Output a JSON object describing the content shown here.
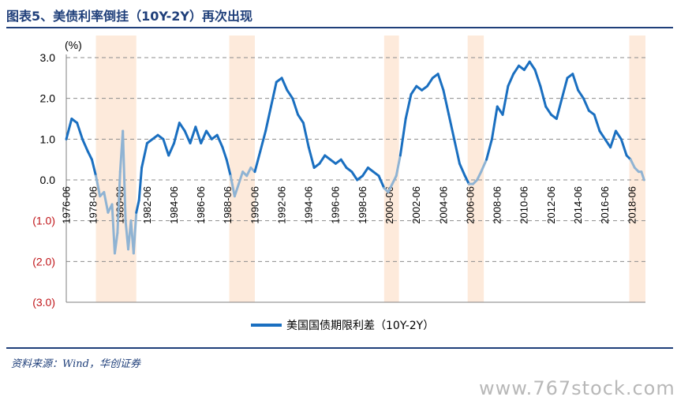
{
  "header": {
    "title": "图表5、美债利率倒挂（10Y-2Y）再次出现"
  },
  "footer": {
    "source": "资料来源：Wind，华创证券",
    "watermark": "www.767stock.com"
  },
  "colors": {
    "line": "#1a6fc0",
    "recession_line": "#8fb3d3",
    "recession_band": "#fdeadb",
    "positive_tick": "#000000",
    "negative_tick": "#c0161a"
  },
  "chart_data": {
    "type": "line",
    "ylabel": "(%)",
    "ylim": [
      -3.0,
      3.0
    ],
    "y_ticks": [
      3.0,
      2.0,
      1.0,
      0.0,
      -1.0,
      -2.0,
      -3.0
    ],
    "y_tick_labels": [
      "3.0",
      "2.0",
      "1.0",
      "0.0",
      "(1.0)",
      "(2.0)",
      "(3.0)"
    ],
    "xlim": [
      1976.4,
      2019.4
    ],
    "x_ticks": [
      1976.42,
      1978.42,
      1980.42,
      1982.42,
      1984.42,
      1986.42,
      1988.42,
      1990.42,
      1992.42,
      1994.42,
      1996.42,
      1998.42,
      2000.42,
      2002.42,
      2004.42,
      2006.42,
      2008.42,
      2010.42,
      2012.42,
      2014.42,
      2016.42,
      2018.42
    ],
    "x_tick_labels": [
      "1976-06",
      "1978-06",
      "1980-06",
      "1982-06",
      "1984-06",
      "1986-06",
      "1988-06",
      "1990-06",
      "1992-06",
      "1994-06",
      "1996-06",
      "1998-06",
      "2000-06",
      "2002-06",
      "2004-06",
      "2006-06",
      "2008-06",
      "2010-06",
      "2012-06",
      "2014-06",
      "2016-06",
      "2018-06"
    ],
    "grid": "horizontal-dashed",
    "legend_position": "bottom-center",
    "inversion_periods": [
      [
        1978.6,
        1981.6
      ],
      [
        1988.5,
        1990.4
      ],
      [
        2000.0,
        2001.1
      ],
      [
        2006.2,
        2007.4
      ],
      [
        2018.2,
        2019.4
      ]
    ],
    "series": [
      {
        "name": "美国国债期限利差（10Y-2Y）",
        "x": [
          1976.4,
          1976.8,
          1977.2,
          1977.6,
          1978.0,
          1978.3,
          1978.6,
          1978.9,
          1979.2,
          1979.5,
          1979.8,
          1980.0,
          1980.2,
          1980.4,
          1980.6,
          1980.8,
          1981.0,
          1981.2,
          1981.4,
          1981.6,
          1981.8,
          1982.0,
          1982.4,
          1982.8,
          1983.2,
          1983.6,
          1984.0,
          1984.4,
          1984.8,
          1985.2,
          1985.6,
          1986.0,
          1986.4,
          1986.8,
          1987.2,
          1987.6,
          1988.0,
          1988.3,
          1988.6,
          1988.9,
          1989.2,
          1989.5,
          1989.8,
          1990.1,
          1990.4,
          1990.8,
          1991.2,
          1991.6,
          1992.0,
          1992.4,
          1992.8,
          1993.2,
          1993.6,
          1994.0,
          1994.4,
          1994.8,
          1995.2,
          1995.6,
          1996.0,
          1996.4,
          1996.8,
          1997.2,
          1997.6,
          1998.0,
          1998.4,
          1998.8,
          1999.2,
          1999.6,
          2000.0,
          2000.3,
          2000.6,
          2000.9,
          2001.2,
          2001.6,
          2002.0,
          2002.4,
          2002.8,
          2003.2,
          2003.6,
          2004.0,
          2004.4,
          2004.8,
          2005.2,
          2005.6,
          2006.0,
          2006.3,
          2006.6,
          2006.9,
          2007.2,
          2007.6,
          2008.0,
          2008.4,
          2008.8,
          2009.2,
          2009.6,
          2010.0,
          2010.4,
          2010.8,
          2011.2,
          2011.6,
          2012.0,
          2012.4,
          2012.8,
          2013.2,
          2013.6,
          2014.0,
          2014.4,
          2014.8,
          2015.2,
          2015.6,
          2016.0,
          2016.4,
          2016.8,
          2017.2,
          2017.6,
          2018.0,
          2018.3,
          2018.6,
          2018.9,
          2019.1,
          2019.3
        ],
        "y": [
          1.0,
          1.5,
          1.4,
          1.0,
          0.7,
          0.5,
          0.1,
          -0.4,
          -0.3,
          -0.8,
          -0.6,
          -1.8,
          -1.3,
          0.2,
          1.2,
          -1.0,
          -1.7,
          -1.0,
          -1.8,
          -0.8,
          -0.5,
          0.3,
          0.9,
          1.0,
          1.1,
          1.0,
          0.6,
          0.9,
          1.4,
          1.2,
          0.9,
          1.3,
          0.9,
          1.2,
          1.0,
          1.1,
          0.8,
          0.5,
          0.1,
          -0.4,
          -0.1,
          0.2,
          0.1,
          0.3,
          0.2,
          0.7,
          1.2,
          1.8,
          2.4,
          2.5,
          2.2,
          2.0,
          1.6,
          1.4,
          0.8,
          0.3,
          0.4,
          0.6,
          0.5,
          0.4,
          0.5,
          0.3,
          0.2,
          0.0,
          0.1,
          0.3,
          0.2,
          0.1,
          -0.2,
          -0.3,
          -0.1,
          0.1,
          0.6,
          1.5,
          2.1,
          2.3,
          2.2,
          2.3,
          2.5,
          2.6,
          2.2,
          1.6,
          1.0,
          0.4,
          0.1,
          -0.1,
          -0.1,
          0.0,
          0.2,
          0.5,
          1.0,
          1.8,
          1.6,
          2.3,
          2.6,
          2.8,
          2.7,
          2.9,
          2.7,
          2.3,
          1.8,
          1.6,
          1.5,
          2.0,
          2.5,
          2.6,
          2.2,
          2.0,
          1.7,
          1.6,
          1.2,
          1.0,
          0.8,
          1.2,
          1.0,
          0.6,
          0.5,
          0.3,
          0.2,
          0.2,
          0.0
        ]
      }
    ]
  }
}
